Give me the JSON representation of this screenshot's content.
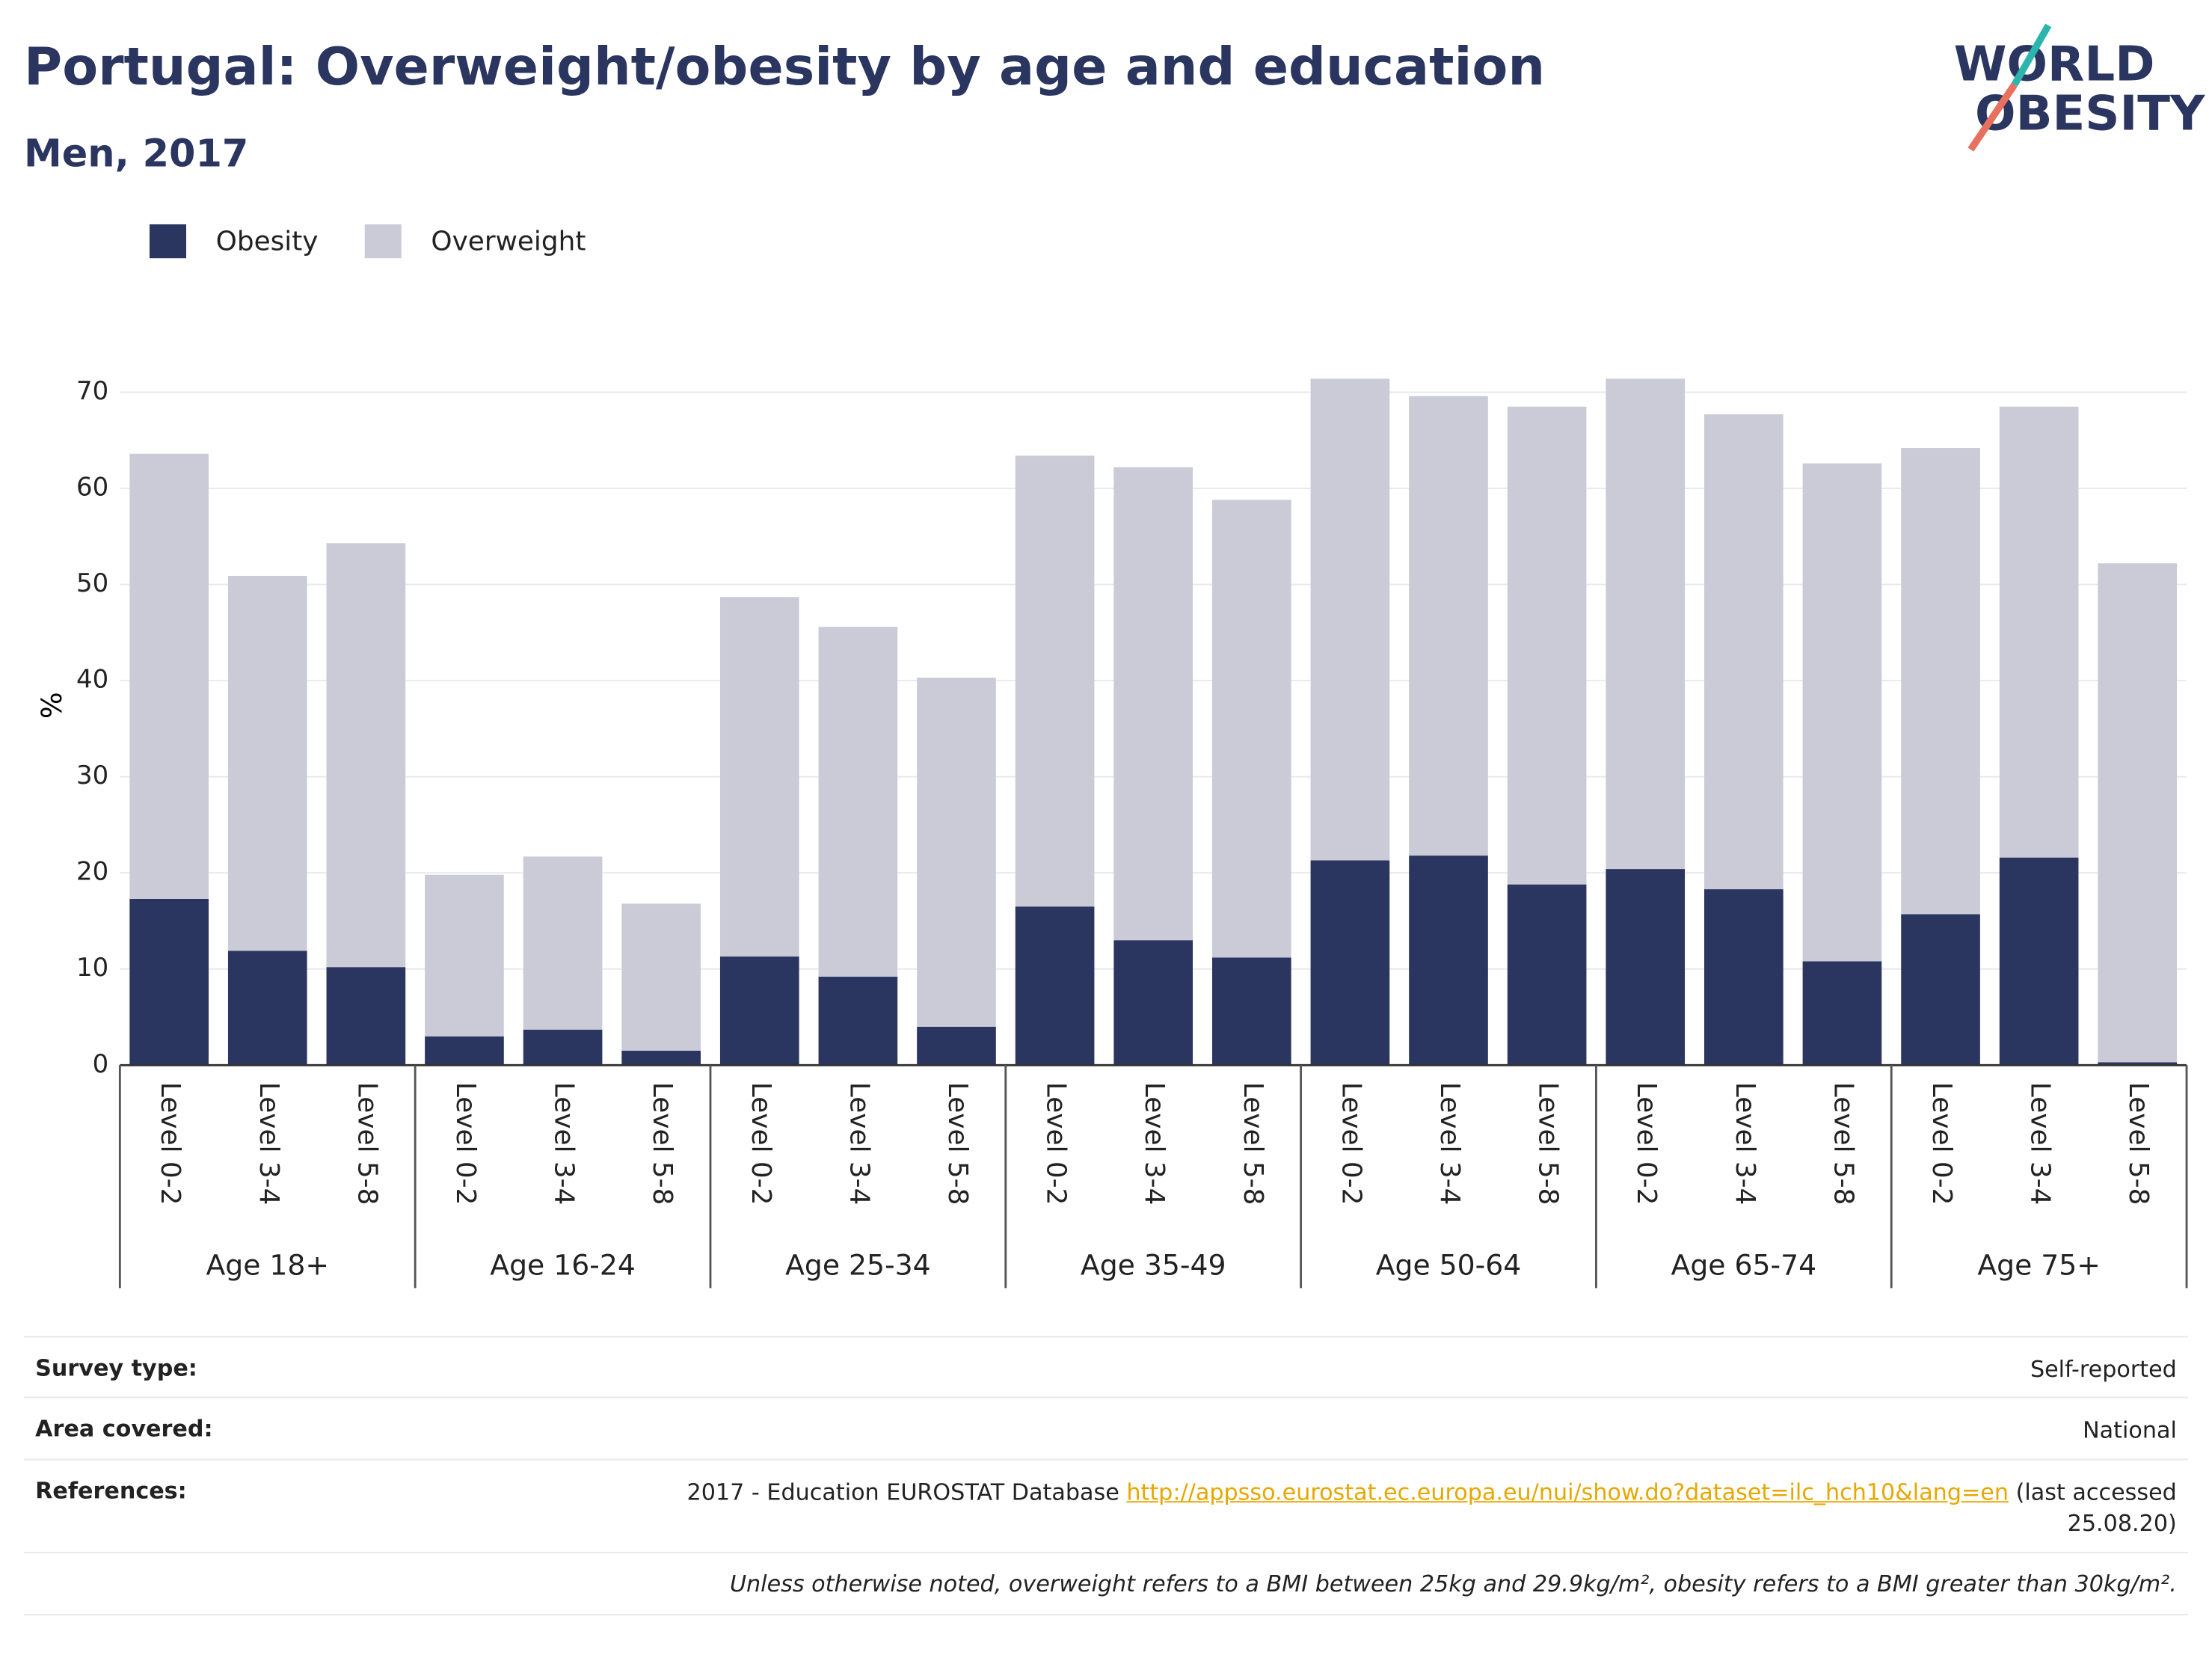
{
  "chart_data": {
    "type": "bar",
    "stacked": true,
    "title": "Portugal: Overweight/obesity by age and education",
    "subtitle": "Men, 2017",
    "ylabel": "%",
    "categories": [
      "Level 0-2",
      "Level 3-4",
      "Level 5-8",
      "Level 0-2",
      "Level 3-4",
      "Level 5-8",
      "Level 0-2",
      "Level 3-4",
      "Level 5-8",
      "Level 0-2",
      "Level 3-4",
      "Level 5-8",
      "Level 0-2",
      "Level 3-4",
      "Level 5-8",
      "Level 0-2",
      "Level 3-4",
      "Level 5-8",
      "Level 0-2",
      "Level 3-4",
      "Level 5-8"
    ],
    "groups": [
      "Age 18+",
      "Age 16-24",
      "Age 25-34",
      "Age 35-49",
      "Age 50-64",
      "Age 65-74",
      "Age 75+"
    ],
    "series": [
      {
        "name": "Obesity",
        "color": "#2a3560",
        "values": [
          17.3,
          11.9,
          10.2,
          3.0,
          3.7,
          1.5,
          11.3,
          9.2,
          4.0,
          16.5,
          13.0,
          11.2,
          21.3,
          21.8,
          18.8,
          20.4,
          18.3,
          10.8,
          15.7,
          21.6,
          0.3
        ]
      },
      {
        "name": "Overweight",
        "color": "#cacbd7",
        "values": [
          46.3,
          39.0,
          44.1,
          16.8,
          18.0,
          15.3,
          37.4,
          36.4,
          36.3,
          46.9,
          49.2,
          47.6,
          50.1,
          47.8,
          49.7,
          51.0,
          49.4,
          51.8,
          48.5,
          46.9,
          51.9
        ]
      }
    ],
    "ylim": [
      0,
      72
    ],
    "yticks": [
      0,
      10,
      20,
      30,
      40,
      50,
      60,
      70
    ],
    "grid": true,
    "legend": "top-left"
  },
  "logo": {
    "line1": "WORLD",
    "line2": "OBESITY"
  },
  "footer": {
    "survey": {
      "label": "Survey type:",
      "value": "Self-reported"
    },
    "area": {
      "label": "Area covered:",
      "value": "National"
    },
    "references": {
      "label": "References:",
      "text": "2017 - Education EUROSTAT Database",
      "url": "http://appsso.eurostat.ec.europa.eu/nui/show.do?dataset=ilc_hch10&lang=en",
      "note": "(last accessed 25.08.20)"
    },
    "note": "Unless otherwise noted, overweight refers to a BMI between 25kg and 29.9kg/m², obesity refers to a BMI greater than 30kg/m²."
  }
}
